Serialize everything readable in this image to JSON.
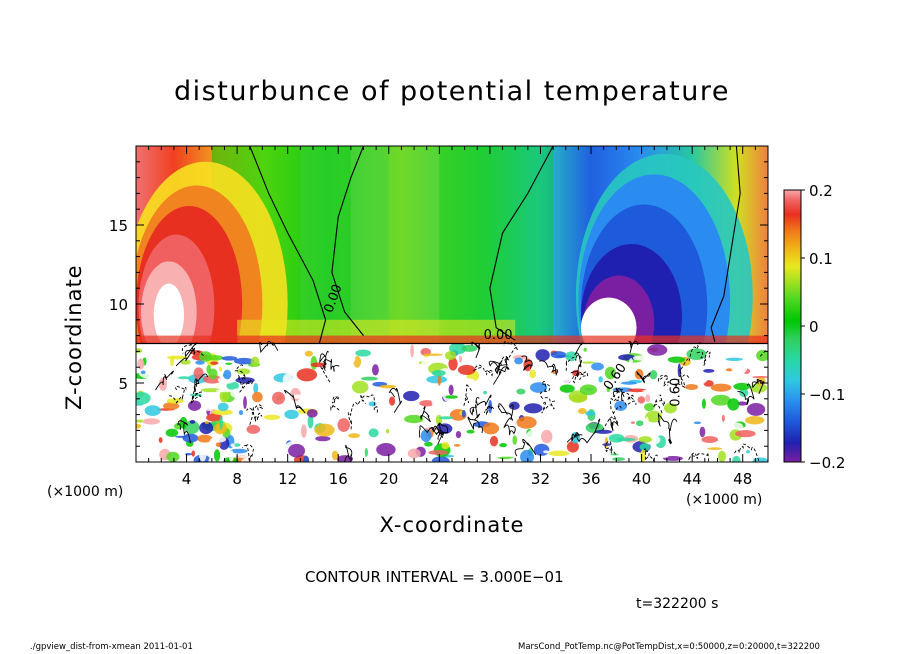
{
  "chart_data": {
    "type": "heatmap",
    "title": "disturbunce of potential temperature",
    "xlabel": "X-coordinate",
    "ylabel": "Z-coordinate",
    "x_unit_left": "(×1000 m)",
    "x_unit_right": "(×1000 m)",
    "xlim": [
      0,
      50
    ],
    "ylim": [
      0,
      20
    ],
    "x_ticks": [
      4,
      8,
      12,
      16,
      20,
      24,
      28,
      32,
      36,
      40,
      44,
      48
    ],
    "y_ticks": [
      5,
      10,
      15
    ],
    "colorbar": {
      "range": [
        -0.2,
        0.2
      ],
      "ticks": [
        {
          "value": 0.2,
          "label": "0.2"
        },
        {
          "value": 0.1,
          "label": "0.1"
        },
        {
          "value": 0,
          "label": "0"
        },
        {
          "value": -0.1,
          "label": "−0.1"
        },
        {
          "value": -0.2,
          "label": "−0.2"
        }
      ],
      "colors": [
        "#7b1fa2",
        "#2020b0",
        "#1e5adc",
        "#2a8cf0",
        "#2ec8e0",
        "#28d8a0",
        "#30d060",
        "#00c800",
        "#50d820",
        "#a0e020",
        "#e8e820",
        "#f0b818",
        "#f07818",
        "#e83020",
        "#f06060",
        "#f8a8a8"
      ]
    },
    "contour_labels": [
      "0.00",
      "0.00",
      "0.60",
      "0.60"
    ],
    "contour_interval_text": "CONTOUR INTERVAL = 3.000E−01",
    "time_text": "t=322200  s",
    "inversion_height": 7.5
  },
  "footer": {
    "left": "./gpview_dist-from-xmean   2011-01-01",
    "right": "MarsCond_PotTemp.nc@PotTempDist,x=0:50000,z=0:20000,t=322200"
  }
}
